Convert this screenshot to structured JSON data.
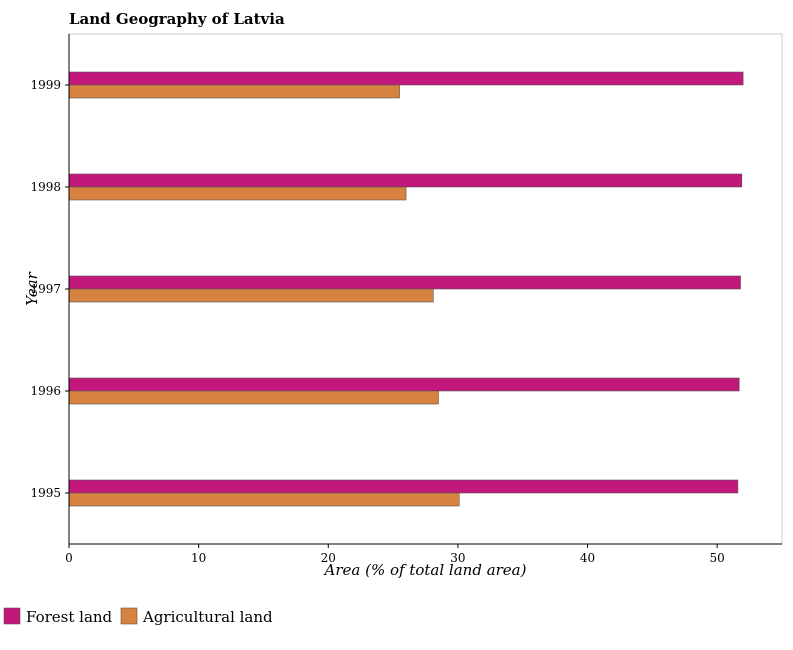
{
  "chart_data": {
    "type": "bar",
    "orientation": "horizontal",
    "title": "Land Geography of Latvia",
    "xlabel": "Area (% of total land area)",
    "ylabel": "Year",
    "categories": [
      "1995",
      "1996",
      "1997",
      "1998",
      "1999"
    ],
    "series": [
      {
        "name": "Forest land",
        "color": "#c2187b",
        "values": [
          51.6,
          51.7,
          51.8,
          51.9,
          52.0
        ]
      },
      {
        "name": "Agricultural land",
        "color": "#d8823f",
        "values": [
          30.1,
          28.5,
          28.1,
          26.0,
          25.5
        ]
      }
    ],
    "xlim": [
      0,
      55
    ],
    "xticks": [
      0,
      10,
      20,
      30,
      40,
      50
    ],
    "grid": false,
    "legend_position": "bottom-left"
  }
}
